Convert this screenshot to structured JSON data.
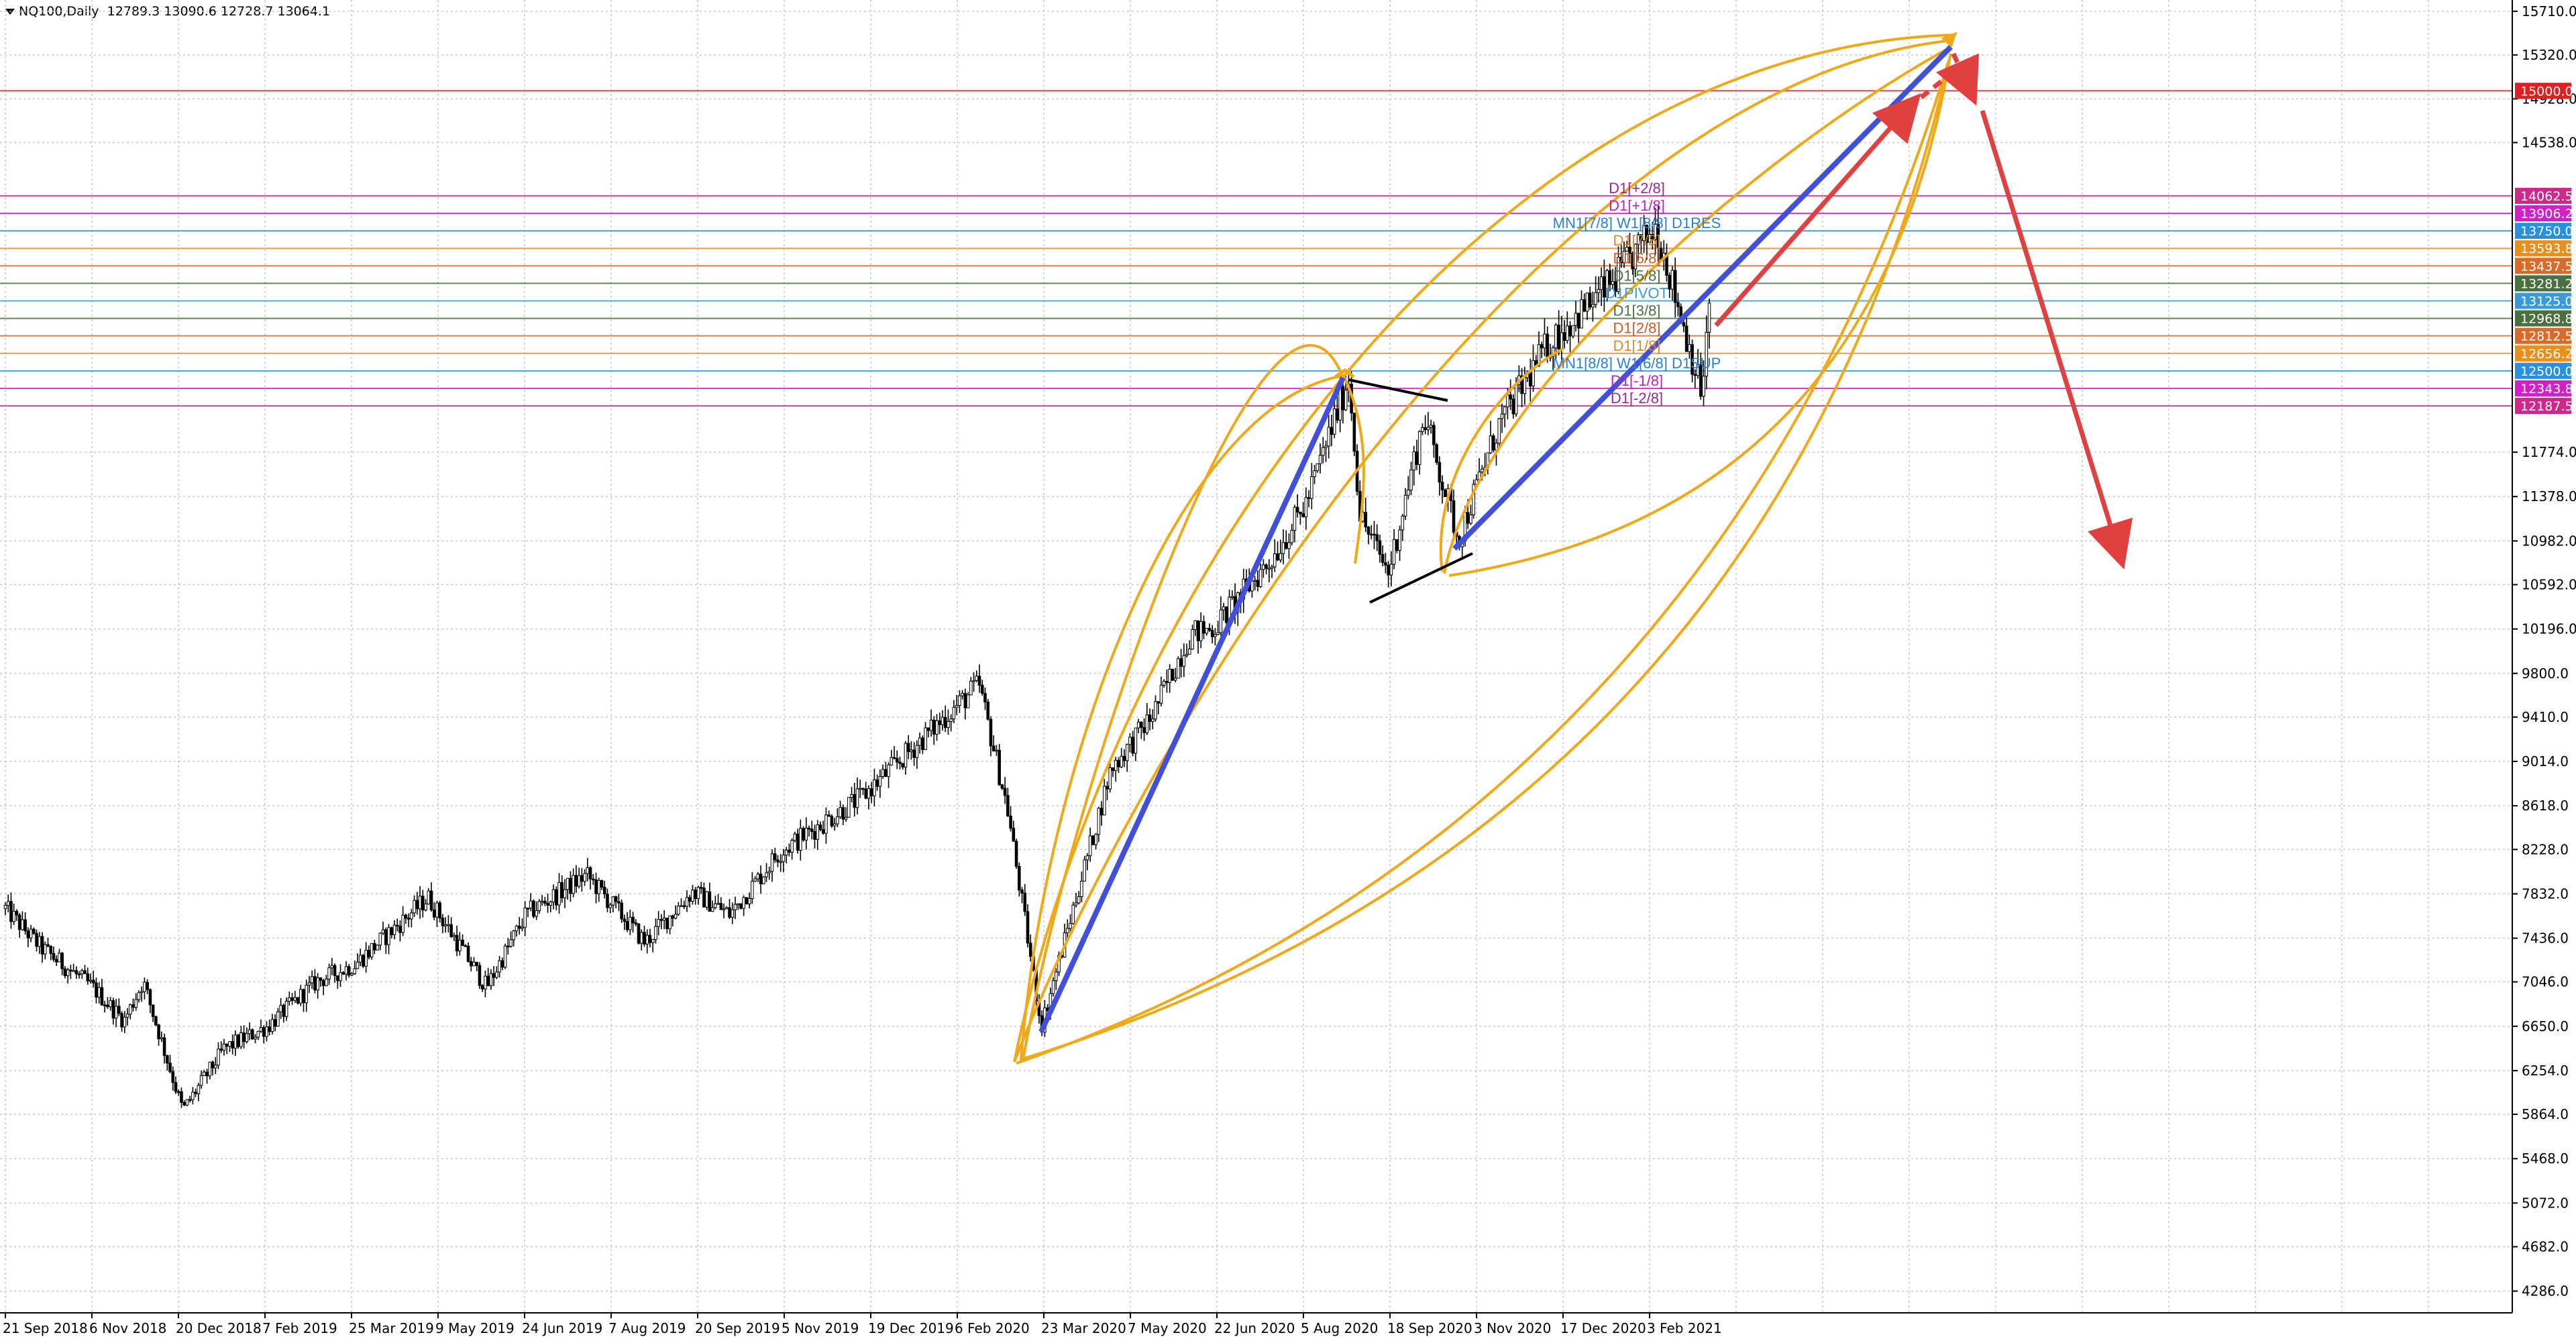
{
  "header": {
    "symbol": "NQ100,Daily",
    "ohlc": "12789.3 13090.6 12728.7 13064.1"
  },
  "colors": {
    "background": "#ffffff",
    "grid": "#c8c8c8",
    "candle": "#000000",
    "trend_blue": "#4050d8",
    "arc_orange": "#f0a818",
    "arrow_red": "#e04040",
    "level_red": "#e8201a"
  },
  "chart_data": {
    "type": "candlestick",
    "symbol": "NQ100",
    "timeframe": "Daily",
    "last_bar": {
      "open": 12789.3,
      "high": 13090.6,
      "low": 12728.7,
      "close": 13064.1
    },
    "ylim": [
      4086.0,
      15800.0
    ],
    "grid": true,
    "y_ticks": [
      15710.0,
      15320.0,
      14928.0,
      14538.0,
      11774.0,
      11378.0,
      10982.0,
      10592.0,
      10196.0,
      9800.0,
      9410.0,
      9014.0,
      8618.0,
      8228.0,
      7832.0,
      7436.0,
      7046.0,
      6650.0,
      6254.0,
      5864.0,
      5468.0,
      5072.0,
      4682.0,
      4286.0
    ],
    "x_ticks": [
      "21 Sep 2018",
      "6 Nov 2018",
      "20 Dec 2018",
      "7 Feb 2019",
      "25 Mar 2019",
      "9 May 2019",
      "24 Jun 2019",
      "7 Aug 2019",
      "20 Sep 2019",
      "5 Nov 2019",
      "19 Dec 2019",
      "6 Feb 2020",
      "23 Mar 2020",
      "7 May 2020",
      "22 Jun 2020",
      "5 Aug 2020",
      "18 Sep 2020",
      "3 Nov 2020",
      "17 Dec 2020",
      "3 Feb 2021"
    ],
    "price_path": [
      [
        "2018-09-21",
        7700
      ],
      [
        "2018-10-10",
        7350
      ],
      [
        "2018-11-06",
        7000
      ],
      [
        "2018-11-23",
        6700
      ],
      [
        "2018-12-03",
        7050
      ],
      [
        "2018-12-24",
        5900
      ],
      [
        "2019-01-15",
        6450
      ],
      [
        "2019-02-07",
        6650
      ],
      [
        "2019-03-05",
        7050
      ],
      [
        "2019-03-25",
        7200
      ],
      [
        "2019-05-03",
        7800
      ],
      [
        "2019-06-03",
        7000
      ],
      [
        "2019-06-24",
        7650
      ],
      [
        "2019-07-26",
        8000
      ],
      [
        "2019-08-26",
        7400
      ],
      [
        "2019-09-20",
        7850
      ],
      [
        "2019-10-10",
        7650
      ],
      [
        "2019-11-05",
        8200
      ],
      [
        "2019-12-19",
        8700
      ],
      [
        "2020-02-19",
        9700
      ],
      [
        "2020-03-05",
        8600
      ],
      [
        "2020-03-23",
        6650
      ],
      [
        "2020-04-29",
        8950
      ],
      [
        "2020-05-20",
        9400
      ],
      [
        "2020-06-10",
        10150
      ],
      [
        "2020-06-22",
        10200
      ],
      [
        "2020-07-22",
        10800
      ],
      [
        "2020-08-10",
        11300
      ],
      [
        "2020-09-02",
        12450
      ],
      [
        "2020-09-08",
        11200
      ],
      [
        "2020-09-23",
        10700
      ],
      [
        "2020-10-12",
        12100
      ],
      [
        "2020-10-30",
        11000
      ],
      [
        "2020-11-20",
        12000
      ],
      [
        "2020-12-17",
        12750
      ],
      [
        "2021-01-20",
        13300
      ],
      [
        "2021-02-12",
        13800
      ],
      [
        "2021-03-08",
        12300
      ],
      [
        "2021-03-12",
        13064
      ]
    ],
    "levels": [
      {
        "label": "15000.0",
        "value": 15000.0,
        "color": "#e02020"
      },
      {
        "label": "14062.5",
        "value": 14062.5,
        "color": "#cc2a8a"
      },
      {
        "label": "13906.2",
        "value": 13906.2,
        "color": "#d020c8"
      },
      {
        "label": "13750.0",
        "value": 13750.0,
        "color": "#2890e0"
      },
      {
        "label": "13593.8",
        "value": 13593.8,
        "color": "#e8901e"
      },
      {
        "label": "13437.5",
        "value": 13437.5,
        "color": "#d86a2a"
      },
      {
        "label": "13281.2",
        "value": 13281.2,
        "color": "#4a7040"
      },
      {
        "label": "13125.0",
        "value": 13125.0,
        "color": "#3a9ad8"
      },
      {
        "label": "12968.8",
        "value": 12968.8,
        "color": "#4a7040"
      },
      {
        "label": "12812.5",
        "value": 12812.5,
        "color": "#d86a2a"
      },
      {
        "label": "12656.2",
        "value": 12656.2,
        "color": "#e8901e"
      },
      {
        "label": "12500.0",
        "value": 12500.0,
        "color": "#2890e0"
      },
      {
        "label": "12343.8",
        "value": 12343.8,
        "color": "#d020c8"
      },
      {
        "label": "12187.5",
        "value": 12187.5,
        "color": "#cc2a8a"
      }
    ],
    "level_annotations": [
      {
        "text": "D1[+2/8]",
        "value": 14062.5,
        "color": "#9a2a8a"
      },
      {
        "text": "D1[+1/8]",
        "value": 13906.2,
        "color": "#c020c0"
      },
      {
        "text": "MN1[7/8] W1[8/8] D1RES",
        "value": 13750.0,
        "color": "#2a80d0"
      },
      {
        "text": "D1[7/8]",
        "value": 13593.8,
        "color": "#d88a2a"
      },
      {
        "text": "D1[6/8]",
        "value": 13437.5,
        "color": "#c8602a"
      },
      {
        "text": "D1[5/8]",
        "value": 13281.2,
        "color": "#4a7040"
      },
      {
        "text": "D1PIVOT",
        "value": 13125.0,
        "color": "#3a9ad8"
      },
      {
        "text": "D1[3/8]",
        "value": 12968.8,
        "color": "#4a7040"
      },
      {
        "text": "D1[2/8]",
        "value": 12812.5,
        "color": "#d05a28"
      },
      {
        "text": "D1[1/8]",
        "value": 12656.2,
        "color": "#d88a2a"
      },
      {
        "text": "MN1[8/8] W1[6/8] D1SUP",
        "value": 12500.0,
        "color": "#2a80d0"
      },
      {
        "text": "D1[-1/8]",
        "value": 12343.8,
        "color": "#c020c0"
      },
      {
        "text": "D1[-2/8]",
        "value": 12187.5,
        "color": "#9a2a8a"
      }
    ]
  }
}
